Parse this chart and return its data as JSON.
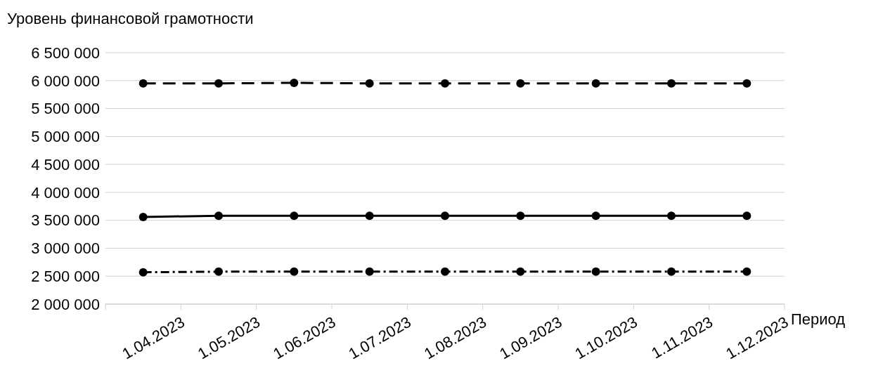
{
  "chart_data": {
    "type": "line",
    "title": "Уровень финансовой грамотности",
    "xlabel": "Период",
    "categories": [
      "1.04.2023",
      "1.05.2023",
      "1.06.2023",
      "1.07.2023",
      "1.08.2023",
      "1.09.2023",
      "1.10.2023",
      "1.11.2023",
      "1.12.2023"
    ],
    "series": [
      {
        "color": "#000000",
        "line_style": "dashed",
        "values": [
          5950000,
          5950000,
          5960000,
          5950000,
          5950000,
          5950000,
          5950000,
          5950000,
          5950000
        ]
      },
      {
        "color": "#000000",
        "line_style": "solid",
        "values": [
          3560000,
          3580000,
          3580000,
          3580000,
          3580000,
          3580000,
          3580000,
          3580000,
          3580000
        ]
      },
      {
        "color": "#000000",
        "line_style": "dashdot",
        "values": [
          2570000,
          2580000,
          2580000,
          2580000,
          2580000,
          2580000,
          2580000,
          2580000,
          2580000
        ]
      }
    ],
    "ylim": [
      2000000,
      6500000
    ],
    "yticks": [
      {
        "value": 2000000,
        "label": "2 000 000"
      },
      {
        "value": 2500000,
        "label": "2 500 000"
      },
      {
        "value": 3000000,
        "label": "3 000 000"
      },
      {
        "value": 3500000,
        "label": "3 500 000"
      },
      {
        "value": 4000000,
        "label": "4 000 000"
      },
      {
        "value": 4500000,
        "label": "4 500 000"
      },
      {
        "value": 5000000,
        "label": "5 000 000"
      },
      {
        "value": 5500000,
        "label": "5 500 000"
      },
      {
        "value": 6000000,
        "label": "6 000 000"
      },
      {
        "value": 6500000,
        "label": "6 500 000"
      }
    ],
    "grid": "y",
    "legend": false,
    "marker": "circle"
  }
}
